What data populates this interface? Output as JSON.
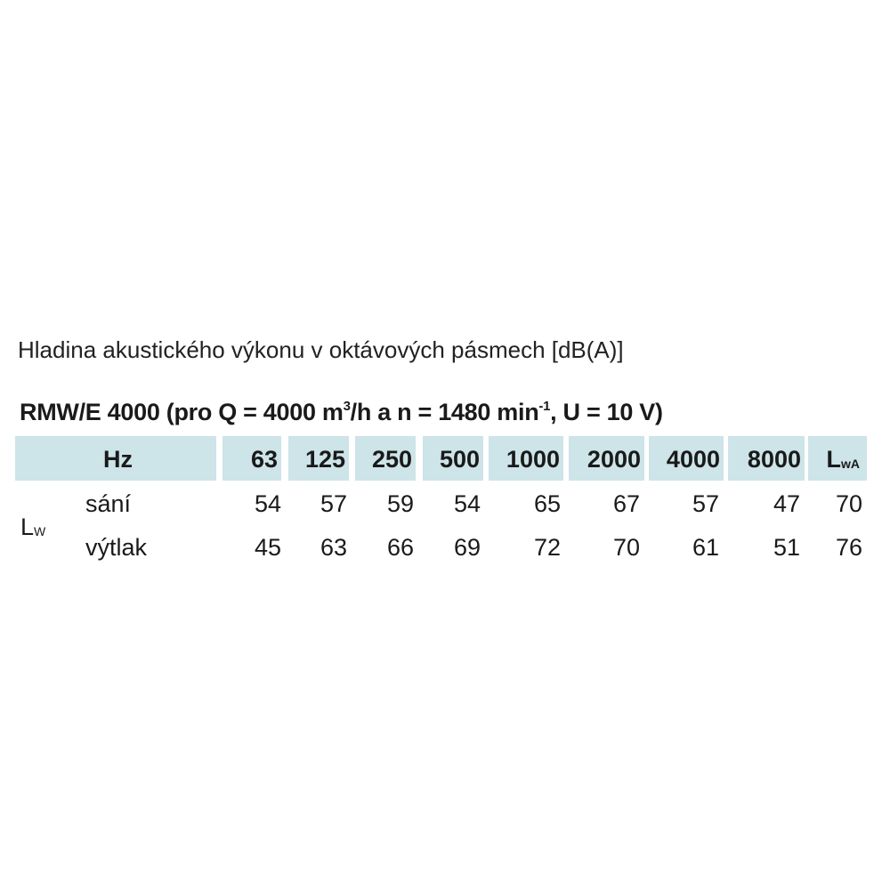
{
  "caption": "Hladina akustického výkonu v oktávových pásmech [dB(A)]",
  "heading": {
    "main": "RMW/E 4000 (pro Q = 4000 m",
    "sup1": "3",
    "mid": "/h a n = 1480 min",
    "sup2": "-1",
    "end": ", U = 10 V)"
  },
  "table": {
    "header_color": "#cde4e8",
    "hz_label": "Hz",
    "frequencies": [
      "63",
      "125",
      "250",
      "500",
      "1000",
      "2000",
      "4000",
      "8000"
    ],
    "total_label": {
      "main": "L",
      "sub": "wA"
    },
    "group_label": {
      "main": "L",
      "sub": "W"
    },
    "rows": [
      {
        "label": "sání",
        "values": [
          "54",
          "57",
          "59",
          "54",
          "65",
          "67",
          "57",
          "47"
        ],
        "total": "70"
      },
      {
        "label": "výtlak",
        "values": [
          "45",
          "63",
          "66",
          "69",
          "72",
          "70",
          "61",
          "51"
        ],
        "total": "76"
      }
    ]
  }
}
